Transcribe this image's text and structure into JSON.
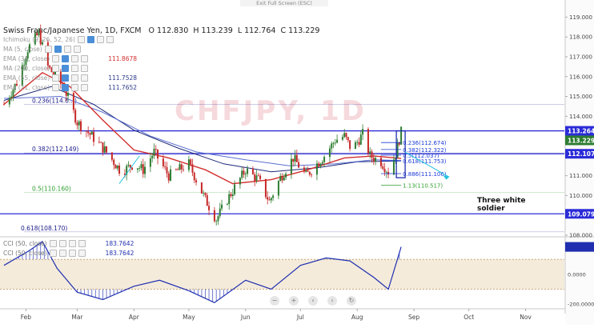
{
  "top": {
    "exit_fullscreen": "Exit Full Screen (ESC)"
  },
  "header": {
    "symbol": "Swiss Franc/Japanese Yen, 1D, FXCM",
    "o": "O 112.830",
    "h": "H 113.239",
    "l": "L 112.764",
    "c": "C 113.229"
  },
  "watermark": "CHFJPY, 1D",
  "indicators": [
    {
      "label": "Ichimoku (9, 26, 52, 26)",
      "value": "",
      "color": "#888888"
    },
    {
      "label": "MA (5, close)",
      "value": "",
      "color": "#888888"
    },
    {
      "label": "EMA (34, close)",
      "value": "111.8678",
      "color": "#d32f2f"
    },
    {
      "label": "MA (200, close)",
      "value": "",
      "color": "#888888"
    },
    {
      "label": "EMA (55, close)",
      "value": "111.7528",
      "color": "#2a3a8a"
    },
    {
      "label": "EMA (21, close)",
      "value": "111.7652",
      "color": "#2a3a8a"
    }
  ],
  "cci_legend": [
    {
      "label": "CCI (50, close)",
      "value": "183.7642"
    },
    {
      "label": "CCI (50, close)",
      "value": "183.7642"
    }
  ],
  "annotation": {
    "line1": "Three white",
    "line2": "soldier"
  },
  "nav_icons": [
    "minus-icon",
    "plus-icon",
    "scroll-left-icon",
    "scroll-right-icon",
    "reset-icon"
  ],
  "nav_glyphs": [
    "−",
    "+",
    "‹",
    "›",
    "↻"
  ],
  "colors": {
    "up": "#2e7d32",
    "down": "#c62828",
    "ema34": "#d32f2f",
    "ema55": "#1e2a78",
    "ema21": "#5a6fd0",
    "hline": "#2b2bd8",
    "fib_old": "#1a1a8a",
    "fib_green": "#2e9e2e",
    "arrow": "#27c4e0",
    "cci": "#1f2fb0"
  },
  "chart_data": {
    "type": "candlestick",
    "title": "Swiss Franc/Japanese Yen, 1D, FXCM",
    "x_labels": [
      "Feb",
      "Mar",
      "Apr",
      "May",
      "Jun",
      "Jul",
      "Aug",
      "Sep",
      "Oct",
      "Nov"
    ],
    "ylim": [
      108.0,
      119.3
    ],
    "y_ticks": [
      108.0,
      109.0,
      110.0,
      111.0,
      112.0,
      113.0,
      114.0,
      115.0,
      116.0,
      117.0,
      118.0,
      119.0
    ],
    "y_tick_labels": [
      "108.000",
      "109.000",
      "110.000",
      "111.000",
      "112.000",
      "113.000",
      "114.000",
      "115.000",
      "116.000",
      "117.000",
      "118.000",
      "119.000"
    ],
    "price_keypoints": [
      {
        "date": "2017-01-20",
        "close": 114.6
      },
      {
        "date": "2017-01-27",
        "close": 115.7
      },
      {
        "date": "2017-02-02",
        "close": 117.4
      },
      {
        "date": "2017-02-08",
        "close": 118.2
      },
      {
        "date": "2017-02-13",
        "close": 116.5
      },
      {
        "date": "2017-02-22",
        "close": 115.4
      },
      {
        "date": "2017-03-01",
        "close": 113.7
      },
      {
        "date": "2017-03-09",
        "close": 113.0
      },
      {
        "date": "2017-03-16",
        "close": 112.3
      },
      {
        "date": "2017-03-25",
        "close": 111.2
      },
      {
        "date": "2017-04-01",
        "close": 111.6
      },
      {
        "date": "2017-04-06",
        "close": 111.3
      },
      {
        "date": "2017-04-12",
        "close": 112.2
      },
      {
        "date": "2017-04-20",
        "close": 111.0
      },
      {
        "date": "2017-05-01",
        "close": 111.6
      },
      {
        "date": "2017-05-10",
        "close": 109.8
      },
      {
        "date": "2017-05-16",
        "close": 108.8
      },
      {
        "date": "2017-05-22",
        "close": 109.8
      },
      {
        "date": "2017-06-01",
        "close": 111.3
      },
      {
        "date": "2017-06-08",
        "close": 110.8
      },
      {
        "date": "2017-06-14",
        "close": 109.7
      },
      {
        "date": "2017-06-20",
        "close": 110.9
      },
      {
        "date": "2017-06-27",
        "close": 111.9
      },
      {
        "date": "2017-07-04",
        "close": 111.0
      },
      {
        "date": "2017-07-10",
        "close": 111.6
      },
      {
        "date": "2017-07-14",
        "close": 112.0
      },
      {
        "date": "2017-07-20",
        "close": 112.8
      },
      {
        "date": "2017-07-25",
        "close": 113.0
      },
      {
        "date": "2017-07-29",
        "close": 112.3
      },
      {
        "date": "2017-08-04",
        "close": 113.1
      },
      {
        "date": "2017-08-08",
        "close": 112.0
      },
      {
        "date": "2017-08-14",
        "close": 111.7
      },
      {
        "date": "2017-08-18",
        "close": 111.2
      },
      {
        "date": "2017-08-22",
        "close": 112.1
      },
      {
        "date": "2017-08-25",
        "close": 113.2
      }
    ],
    "ema34_points": [
      {
        "date": "2017-01-20",
        "value": 114.6
      },
      {
        "date": "2017-02-10",
        "value": 116.2
      },
      {
        "date": "2017-02-25",
        "value": 115.5
      },
      {
        "date": "2017-03-15",
        "value": 113.8
      },
      {
        "date": "2017-04-01",
        "value": 112.3
      },
      {
        "date": "2017-04-20",
        "value": 111.9
      },
      {
        "date": "2017-05-10",
        "value": 111.3
      },
      {
        "date": "2017-05-25",
        "value": 110.6
      },
      {
        "date": "2017-06-15",
        "value": 110.8
      },
      {
        "date": "2017-07-05",
        "value": 111.3
      },
      {
        "date": "2017-07-25",
        "value": 111.9
      },
      {
        "date": "2017-08-10",
        "value": 112.0
      },
      {
        "date": "2017-08-25",
        "value": 111.87
      }
    ],
    "ema55_points": [
      {
        "date": "2017-01-20",
        "value": 114.8
      },
      {
        "date": "2017-02-15",
        "value": 115.5
      },
      {
        "date": "2017-03-10",
        "value": 114.6
      },
      {
        "date": "2017-04-01",
        "value": 113.3
      },
      {
        "date": "2017-04-25",
        "value": 112.4
      },
      {
        "date": "2017-05-20",
        "value": 111.6
      },
      {
        "date": "2017-06-15",
        "value": 111.2
      },
      {
        "date": "2017-07-10",
        "value": 111.4
      },
      {
        "date": "2017-08-01",
        "value": 111.7
      },
      {
        "date": "2017-08-25",
        "value": 111.75
      }
    ],
    "ema21_points": [
      {
        "date": "2017-01-20",
        "value": 114.9
      },
      {
        "date": "2017-02-20",
        "value": 115.0
      },
      {
        "date": "2017-03-15",
        "value": 114.2
      },
      {
        "date": "2017-04-10",
        "value": 113.0
      },
      {
        "date": "2017-05-05",
        "value": 112.2
      },
      {
        "date": "2017-06-01",
        "value": 111.8
      },
      {
        "date": "2017-06-25",
        "value": 111.5
      },
      {
        "date": "2017-07-20",
        "value": 111.6
      },
      {
        "date": "2017-08-10",
        "value": 111.8
      },
      {
        "date": "2017-08-25",
        "value": 111.77
      }
    ],
    "horizontal_lines": [
      {
        "price": 113.264,
        "label": "113.264",
        "color": "#2b2bd8"
      },
      {
        "price": 112.107,
        "label": "112.107",
        "color": "#2b2bd8"
      },
      {
        "price": 109.079,
        "label": "109.079",
        "color": "#2b2bd8"
      }
    ],
    "current_price": {
      "price": 113.229,
      "label": "113.229",
      "color": "#2e7d32"
    },
    "fib_levels_major": [
      {
        "price": 114.6,
        "label": "0.236(114.6...)"
      },
      {
        "price": 112.149,
        "label": "0.382(112.149)"
      },
      {
        "price": 110.16,
        "label": "0.5(110.160)"
      },
      {
        "price": 108.17,
        "label": "0.618(108.170)"
      }
    ],
    "fib_levels_recent": [
      {
        "price": 112.674,
        "label": "0.236(112.674)"
      },
      {
        "price": 112.322,
        "label": "0.382(112.322)"
      },
      {
        "price": 112.037,
        "label": "0.5(112.037)"
      },
      {
        "price": 111.753,
        "label": "0.618(111.753)"
      },
      {
        "price": 111.106,
        "label": "0.886(111.106)"
      },
      {
        "price": 110.517,
        "label": "1.13(110.517)"
      }
    ],
    "cci": {
      "ylim": [
        -210,
        230
      ],
      "y_ticks": [
        200,
        0,
        -200
      ],
      "y_tick_labels": [
        "200.0000",
        "0.0000",
        "-200.0000"
      ],
      "band": [
        -100,
        100
      ],
      "points": [
        {
          "date": "2017-01-20",
          "value": 60
        },
        {
          "date": "2017-02-03",
          "value": 160
        },
        {
          "date": "2017-02-10",
          "value": 220
        },
        {
          "date": "2017-02-18",
          "value": 40
        },
        {
          "date": "2017-03-01",
          "value": -120
        },
        {
          "date": "2017-03-15",
          "value": -170
        },
        {
          "date": "2017-04-01",
          "value": -80
        },
        {
          "date": "2017-04-15",
          "value": -40
        },
        {
          "date": "2017-05-01",
          "value": -110
        },
        {
          "date": "2017-05-15",
          "value": -190
        },
        {
          "date": "2017-06-01",
          "value": -40
        },
        {
          "date": "2017-06-15",
          "value": -100
        },
        {
          "date": "2017-07-01",
          "value": 60
        },
        {
          "date": "2017-07-15",
          "value": 110
        },
        {
          "date": "2017-07-28",
          "value": 90
        },
        {
          "date": "2017-08-10",
          "value": -20
        },
        {
          "date": "2017-08-18",
          "value": -100
        },
        {
          "date": "2017-08-25",
          "value": 184
        }
      ],
      "last": 183.7642
    }
  }
}
